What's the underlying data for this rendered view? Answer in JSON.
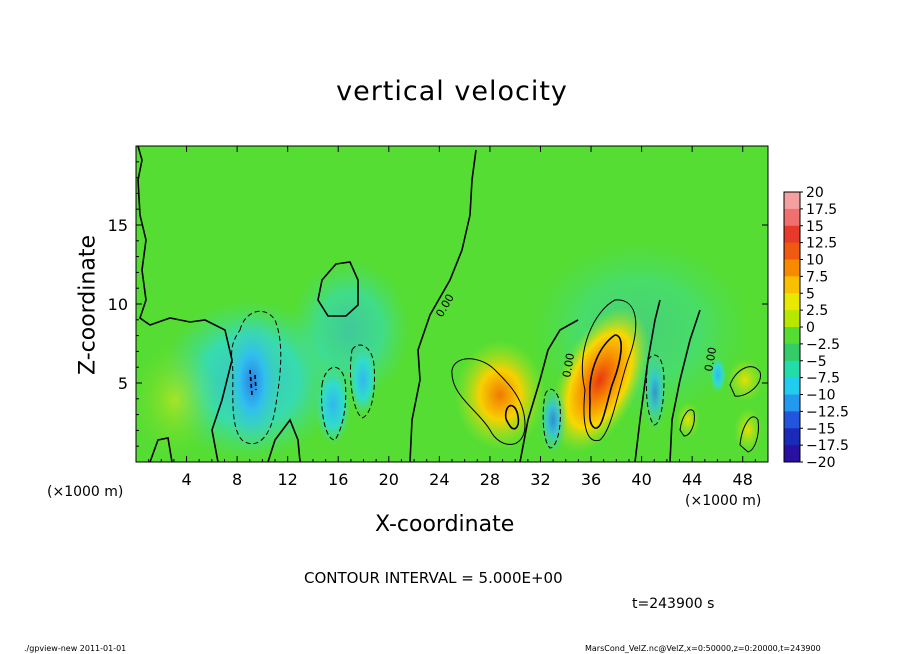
{
  "chart_data": {
    "type": "heatmap",
    "title": "vertical velocity",
    "xlabel": "X-coordinate",
    "ylabel": "Z-coordinate",
    "x_unit_label": "(×1000 m)",
    "x_ticks": [
      4,
      8,
      12,
      16,
      20,
      24,
      28,
      32,
      36,
      40,
      44,
      48
    ],
    "y_ticks": [
      5,
      10,
      15
    ],
    "xlim": [
      0,
      50
    ],
    "ylim": [
      0,
      20
    ],
    "contour_interval_label": "CONTOUR INTERVAL = 5.000E+00",
    "contour_labels": [
      "0.00",
      "0.00",
      "0.00"
    ],
    "colorbar": {
      "labels": [
        "20",
        "17.5",
        "15",
        "12.5",
        "10",
        "7.5",
        "5",
        "2.5",
        "0",
        "−2.5",
        "−5",
        "−7.5",
        "−10",
        "−12.5",
        "−15",
        "−17.5",
        "−20"
      ],
      "colors": [
        "#f5a0a0",
        "#f07070",
        "#e83a2a",
        "#f05a10",
        "#f88a00",
        "#f8c000",
        "#e8e800",
        "#b8e800",
        "#55dd33",
        "#33cc66",
        "#22ddaa",
        "#22ccee",
        "#2299ee",
        "#2255dd",
        "#1a2ab8",
        "#2a10a0",
        "#6a20b0"
      ]
    },
    "features": [
      {
        "kind": "updraft",
        "x": 37.2,
        "z": 4.8,
        "max": 13
      },
      {
        "kind": "updraft",
        "x": 29.8,
        "z": 3.0,
        "max": 9
      },
      {
        "kind": "updraft",
        "x": 48.3,
        "z": 4.8,
        "max": 4
      },
      {
        "kind": "updraft",
        "x": 44.8,
        "z": 3.5,
        "max": 3
      },
      {
        "kind": "downdraft",
        "x": 9.5,
        "z": 4.8,
        "min": -10
      },
      {
        "kind": "downdraft",
        "x": 15.5,
        "z": 3.0,
        "min": -7
      },
      {
        "kind": "downdraft",
        "x": 33.5,
        "z": 2.5,
        "min": -7
      },
      {
        "kind": "downdraft",
        "x": 41.0,
        "z": 4.0,
        "min": -6
      }
    ]
  },
  "time_label": "t=243900 s",
  "footer": {
    "left": "./gpview-new   2011-01-01",
    "right": "MarsCond_VelZ.nc@VelZ,x=0:50000,z=0:20000,t=243900"
  },
  "colors": {
    "background_field": "#55dd33"
  }
}
